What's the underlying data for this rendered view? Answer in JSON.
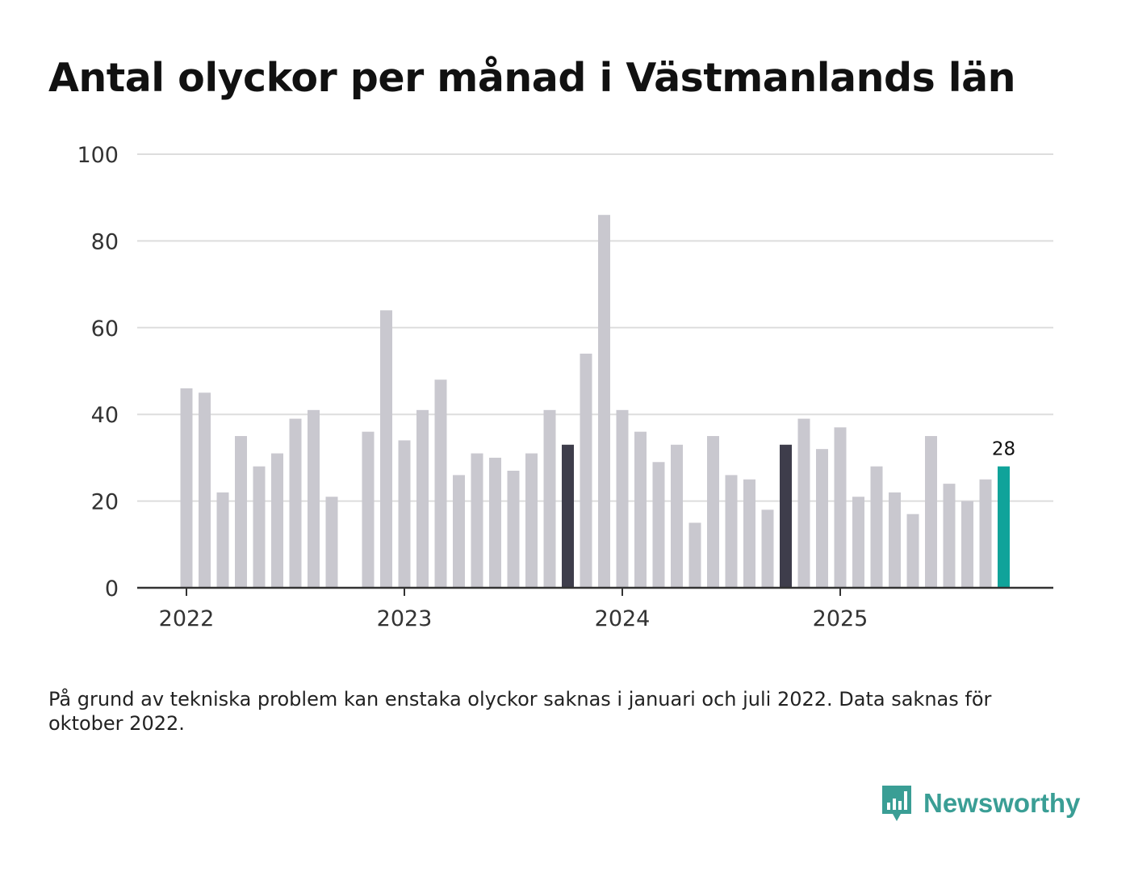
{
  "chart_data": {
    "type": "bar",
    "title": "Antal olyckor per månad i Västmanlands län",
    "xlabel": "",
    "ylabel": "",
    "ylim": [
      0,
      100
    ],
    "yticks": [
      0,
      20,
      40,
      60,
      80,
      100
    ],
    "xtick_labels": [
      "2022",
      "2023",
      "2024",
      "2025"
    ],
    "grid": true,
    "start": "2022-01",
    "values": [
      46,
      45,
      22,
      35,
      28,
      31,
      39,
      41,
      21,
      null,
      36,
      64,
      34,
      41,
      48,
      26,
      31,
      30,
      27,
      31,
      41,
      33,
      54,
      86,
      41,
      36,
      29,
      33,
      15,
      35,
      26,
      25,
      18,
      33,
      39,
      32,
      37,
      21,
      28,
      22,
      17,
      35,
      24,
      20,
      25,
      28
    ],
    "highlight_dark_indices": [
      21,
      33
    ],
    "highlight_last_index": 45,
    "data_labels": [
      {
        "index": 45,
        "text": "28"
      }
    ],
    "colors": {
      "default": "#c9c8cf",
      "dark": "#3e3d4b",
      "last": "#10a39a",
      "grid": "#dddddd",
      "axis": "#333333"
    }
  },
  "note": "På grund av tekniska problem kan enstaka olyckor saknas i januari och juli 2022. Data saknas för oktober 2022.",
  "brand": {
    "name": "Newsworthy",
    "color": "#3a9e95"
  }
}
